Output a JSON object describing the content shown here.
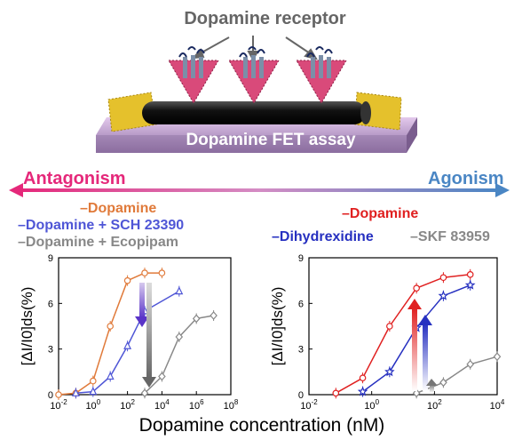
{
  "header": {
    "title": "Dopamine receptor"
  },
  "assay": {
    "label": "Dopamine FET assay"
  },
  "arrow": {
    "left_label": "Antagonism",
    "right_label": "Agonism"
  },
  "colors": {
    "antagonism": "#e5287a",
    "agonism": "#4a86c4",
    "dopamine_left": "#e07a3a",
    "dopamine_right": "#e02020",
    "sch": "#4f56d6",
    "ecopipam": "#888888",
    "dihydrexidine": "#2630c0",
    "skf": "#888888"
  },
  "legend_left": [
    {
      "label": "Dopamine"
    },
    {
      "label": "Dopamine + SCH 23390"
    },
    {
      "label": "Dopamine + Ecopipam"
    }
  ],
  "legend_right": [
    {
      "label": "Dopamine"
    },
    {
      "label": "Dihydrexidine"
    },
    {
      "label": "SKF 83959"
    }
  ],
  "xlabel": "Dopamine concentration (nM)",
  "chart_data": [
    {
      "type": "scatter",
      "ylabel": "[ΔI/I0]ds(%)",
      "xscale": "log",
      "xlim": [
        0.01,
        100000000
      ],
      "ylim": [
        0,
        9
      ],
      "x_ticks": [
        "10-2",
        "100",
        "102",
        "104",
        "106",
        "108"
      ],
      "y_ticks": [
        "0",
        "3",
        "6",
        "9"
      ],
      "series": [
        {
          "name": "Dopamine",
          "x": [
            0.01,
            0.1,
            1,
            10,
            100,
            1000,
            10000
          ],
          "y": [
            0,
            0.1,
            0.9,
            4.5,
            7.5,
            8.0,
            8.0
          ]
        },
        {
          "name": "Dopamine + SCH 23390",
          "x": [
            0.1,
            1,
            10,
            100,
            1000,
            100000
          ],
          "y": [
            0.1,
            0.2,
            1.2,
            3.2,
            5.5,
            6.8
          ]
        },
        {
          "name": "Dopamine + Ecopipam",
          "x": [
            1000,
            10000,
            100000,
            1000000,
            10000000
          ],
          "y": [
            0.1,
            1.2,
            3.8,
            5.0,
            5.2
          ]
        }
      ]
    },
    {
      "type": "scatter",
      "ylabel": "[ΔI/I0]ds(%)",
      "xscale": "log",
      "xlim": [
        0.01,
        100000
      ],
      "ylim": [
        0,
        9
      ],
      "x_ticks": [
        "10-2",
        "100",
        "102",
        "104"
      ],
      "y_ticks": [
        "0",
        "3",
        "6",
        "9"
      ],
      "series": [
        {
          "name": "Dopamine",
          "x": [
            0.1,
            1,
            10,
            100,
            1000,
            10000
          ],
          "y": [
            0.1,
            1.1,
            4.5,
            7.0,
            7.7,
            7.9
          ]
        },
        {
          "name": "Dihydrexidine",
          "x": [
            1,
            10,
            100,
            1000,
            10000
          ],
          "y": [
            0.2,
            1.5,
            4.4,
            6.5,
            7.2
          ]
        },
        {
          "name": "SKF 83959",
          "x": [
            100,
            1000,
            10000,
            100000
          ],
          "y": [
            0.1,
            0.8,
            2.0,
            2.5
          ]
        }
      ]
    }
  ]
}
